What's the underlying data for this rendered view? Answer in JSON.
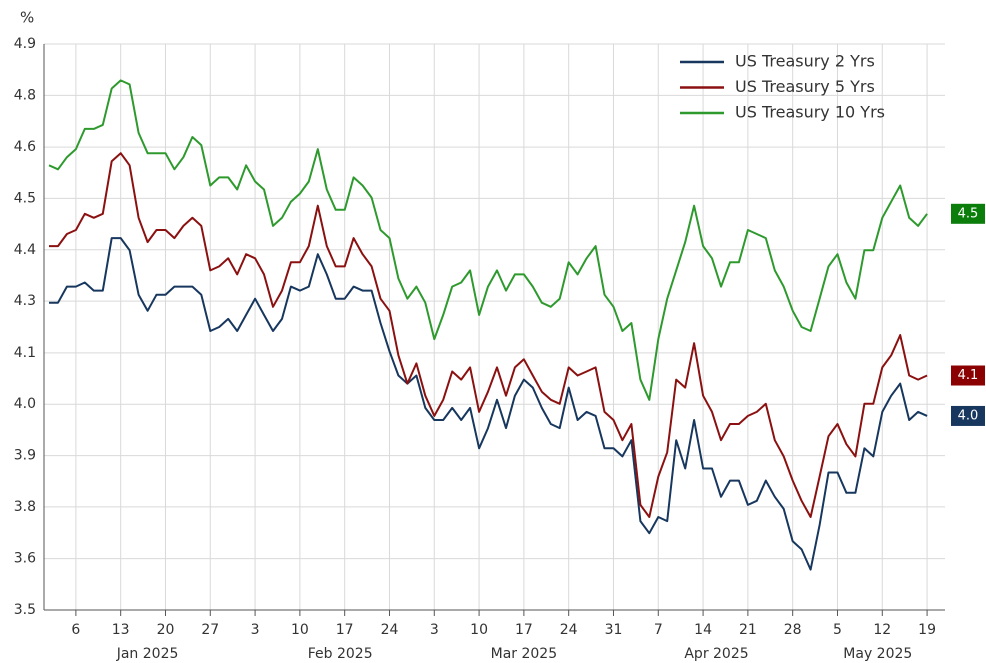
{
  "chart_data": {
    "type": "line",
    "y_unit": "%",
    "x": [
      "2025-01-01",
      "2025-01-02",
      "2025-01-03",
      "2025-01-06",
      "2025-01-07",
      "2025-01-08",
      "2025-01-09",
      "2025-01-10",
      "2025-01-13",
      "2025-01-14",
      "2025-01-15",
      "2025-01-16",
      "2025-01-17",
      "2025-01-20",
      "2025-01-21",
      "2025-01-22",
      "2025-01-23",
      "2025-01-24",
      "2025-01-27",
      "2025-01-28",
      "2025-01-29",
      "2025-01-30",
      "2025-01-31",
      "2025-02-03",
      "2025-02-04",
      "2025-02-05",
      "2025-02-06",
      "2025-02-07",
      "2025-02-10",
      "2025-02-11",
      "2025-02-12",
      "2025-02-13",
      "2025-02-14",
      "2025-02-17",
      "2025-02-18",
      "2025-02-19",
      "2025-02-20",
      "2025-02-21",
      "2025-02-24",
      "2025-02-25",
      "2025-02-26",
      "2025-02-27",
      "2025-02-28",
      "2025-03-03",
      "2025-03-04",
      "2025-03-05",
      "2025-03-06",
      "2025-03-07",
      "2025-03-10",
      "2025-03-11",
      "2025-03-12",
      "2025-03-13",
      "2025-03-14",
      "2025-03-17",
      "2025-03-18",
      "2025-03-19",
      "2025-03-20",
      "2025-03-21",
      "2025-03-24",
      "2025-03-25",
      "2025-03-26",
      "2025-03-27",
      "2025-03-28",
      "2025-03-31",
      "2025-04-01",
      "2025-04-02",
      "2025-04-03",
      "2025-04-04",
      "2025-04-07",
      "2025-04-08",
      "2025-04-09",
      "2025-04-10",
      "2025-04-11",
      "2025-04-14",
      "2025-04-15",
      "2025-04-16",
      "2025-04-17",
      "2025-04-18",
      "2025-04-21",
      "2025-04-22",
      "2025-04-23",
      "2025-04-24",
      "2025-04-25",
      "2025-04-28",
      "2025-04-29",
      "2025-04-30",
      "2025-05-01",
      "2025-05-02",
      "2025-05-05",
      "2025-05-06",
      "2025-05-07",
      "2025-05-08",
      "2025-05-09",
      "2025-05-12",
      "2025-05-13",
      "2025-05-14",
      "2025-05-15",
      "2025-05-16",
      "2025-05-19"
    ],
    "series": [
      {
        "name": "US Treasury 2 Yrs",
        "color": "#17375e",
        "end_label": "4.0",
        "values": [
          4.26,
          4.26,
          4.3,
          4.3,
          4.31,
          4.29,
          4.29,
          4.42,
          4.42,
          4.39,
          4.28,
          4.24,
          4.28,
          4.28,
          4.3,
          4.3,
          4.3,
          4.28,
          4.19,
          4.2,
          4.22,
          4.19,
          4.23,
          4.27,
          4.23,
          4.19,
          4.22,
          4.3,
          4.29,
          4.3,
          4.38,
          4.33,
          4.27,
          4.27,
          4.3,
          4.29,
          4.29,
          4.21,
          4.14,
          4.08,
          4.06,
          4.08,
          4.0,
          3.97,
          3.97,
          4.0,
          3.97,
          4.0,
          3.9,
          3.95,
          4.02,
          3.95,
          4.03,
          4.07,
          4.05,
          4.0,
          3.96,
          3.95,
          4.05,
          3.97,
          3.99,
          3.98,
          3.9,
          3.9,
          3.88,
          3.92,
          3.72,
          3.69,
          3.73,
          3.72,
          3.92,
          3.85,
          3.97,
          3.85,
          3.85,
          3.78,
          3.82,
          3.82,
          3.76,
          3.77,
          3.82,
          3.78,
          3.75,
          3.67,
          3.65,
          3.6,
          3.71,
          3.84,
          3.84,
          3.79,
          3.79,
          3.9,
          3.88,
          3.99,
          4.03,
          4.06,
          3.97,
          3.99,
          3.98
        ]
      },
      {
        "name": "US Treasury 5 Yrs",
        "color": "#8b1111",
        "end_label": "4.1",
        "values": [
          4.4,
          4.4,
          4.43,
          4.44,
          4.48,
          4.47,
          4.48,
          4.61,
          4.63,
          4.6,
          4.47,
          4.41,
          4.44,
          4.44,
          4.42,
          4.45,
          4.47,
          4.45,
          4.34,
          4.35,
          4.37,
          4.33,
          4.38,
          4.37,
          4.33,
          4.25,
          4.29,
          4.36,
          4.36,
          4.4,
          4.5,
          4.4,
          4.35,
          4.35,
          4.42,
          4.38,
          4.35,
          4.27,
          4.24,
          4.13,
          4.06,
          4.11,
          4.03,
          3.98,
          4.02,
          4.09,
          4.07,
          4.1,
          3.99,
          4.04,
          4.1,
          4.03,
          4.1,
          4.12,
          4.08,
          4.04,
          4.02,
          4.01,
          4.1,
          4.08,
          4.09,
          4.1,
          3.99,
          3.97,
          3.92,
          3.96,
          3.76,
          3.73,
          3.83,
          3.89,
          4.07,
          4.05,
          4.16,
          4.03,
          3.99,
          3.92,
          3.96,
          3.96,
          3.98,
          3.99,
          4.01,
          3.92,
          3.88,
          3.82,
          3.77,
          3.73,
          3.83,
          3.93,
          3.96,
          3.91,
          3.88,
          4.01,
          4.01,
          4.1,
          4.13,
          4.18,
          4.08,
          4.07,
          4.08
        ]
      },
      {
        "name": "US Treasury 10 Yrs",
        "color": "#2e9a2e",
        "end_label": "4.5",
        "values": [
          4.6,
          4.59,
          4.62,
          4.64,
          4.69,
          4.69,
          4.7,
          4.79,
          4.81,
          4.8,
          4.68,
          4.63,
          4.63,
          4.63,
          4.59,
          4.62,
          4.67,
          4.65,
          4.55,
          4.57,
          4.57,
          4.54,
          4.6,
          4.56,
          4.54,
          4.45,
          4.47,
          4.51,
          4.53,
          4.56,
          4.64,
          4.54,
          4.49,
          4.49,
          4.57,
          4.55,
          4.52,
          4.44,
          4.42,
          4.32,
          4.27,
          4.3,
          4.26,
          4.17,
          4.23,
          4.3,
          4.31,
          4.34,
          4.23,
          4.3,
          4.34,
          4.29,
          4.33,
          4.33,
          4.3,
          4.26,
          4.25,
          4.27,
          4.36,
          4.33,
          4.37,
          4.4,
          4.28,
          4.25,
          4.19,
          4.21,
          4.07,
          4.02,
          4.17,
          4.27,
          4.34,
          4.41,
          4.5,
          4.4,
          4.37,
          4.3,
          4.36,
          4.36,
          4.44,
          4.43,
          4.42,
          4.34,
          4.3,
          4.24,
          4.2,
          4.19,
          4.27,
          4.35,
          4.38,
          4.31,
          4.27,
          4.39,
          4.39,
          4.47,
          4.51,
          4.55,
          4.47,
          4.45,
          4.48
        ]
      }
    ],
    "end_label_colors": [
      "#17375e",
      "#8b0000",
      "#0a7d0a"
    ],
    "xlim": [
      "2025-01-01",
      "2025-05-21"
    ],
    "xticks": [
      {
        "value": "2025-01-06",
        "label": "6"
      },
      {
        "value": "2025-01-13",
        "label": "13"
      },
      {
        "value": "2025-01-20",
        "label": "20"
      },
      {
        "value": "2025-01-27",
        "label": "27"
      },
      {
        "value": "2025-02-03",
        "label": "3"
      },
      {
        "value": "2025-02-10",
        "label": "10"
      },
      {
        "value": "2025-02-17",
        "label": "17"
      },
      {
        "value": "2025-02-24",
        "label": "24"
      },
      {
        "value": "2025-03-03",
        "label": "3"
      },
      {
        "value": "2025-03-10",
        "label": "10"
      },
      {
        "value": "2025-03-17",
        "label": "17"
      },
      {
        "value": "2025-03-24",
        "label": "24"
      },
      {
        "value": "2025-03-31",
        "label": "31"
      },
      {
        "value": "2025-04-07",
        "label": "7"
      },
      {
        "value": "2025-04-14",
        "label": "14"
      },
      {
        "value": "2025-04-21",
        "label": "21"
      },
      {
        "value": "2025-04-28",
        "label": "28"
      },
      {
        "value": "2025-05-05",
        "label": "5"
      },
      {
        "value": "2025-05-12",
        "label": "12"
      },
      {
        "value": "2025-05-19",
        "label": "19"
      }
    ],
    "x_months": [
      {
        "value": "2025-01",
        "label": "Jan 2025"
      },
      {
        "value": "2025-02",
        "label": "Feb 2025"
      },
      {
        "value": "2025-03",
        "label": "Mar 2025"
      },
      {
        "value": "2025-04",
        "label": "Apr 2025"
      },
      {
        "value": "2025-05",
        "label": "May 2025"
      }
    ],
    "ylim": [
      3.5,
      4.9
    ],
    "yticks": [
      3.5,
      {
        "value": 3.627,
        "label": "3.6"
      },
      {
        "value": 3.755,
        "label": "3.8"
      },
      {
        "value": 3.882,
        "label": "3.9"
      },
      {
        "value": 4.009,
        "label": "4.0"
      },
      {
        "value": 4.136,
        "label": "4.1"
      },
      {
        "value": 4.264,
        "label": "4.3"
      },
      {
        "value": 4.391,
        "label": "4.4"
      },
      {
        "value": 4.518,
        "label": "4.5"
      },
      {
        "value": 4.645,
        "label": "4.6"
      },
      {
        "value": 4.773,
        "label": "4.8"
      },
      4.9
    ],
    "grid": true,
    "legend": "top-right"
  }
}
